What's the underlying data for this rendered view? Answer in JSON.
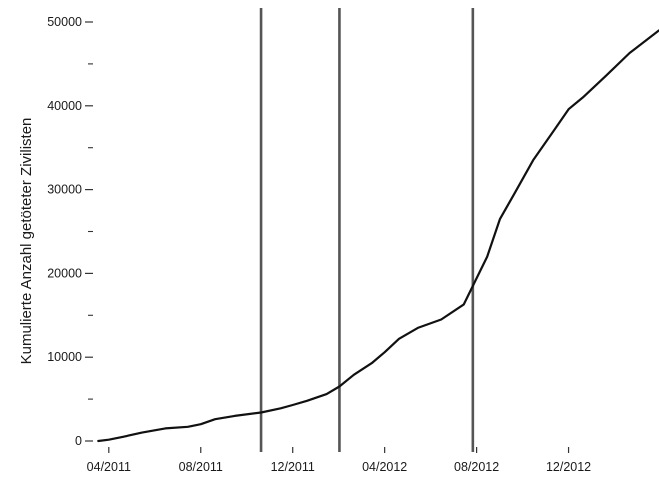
{
  "chart_data": {
    "type": "line",
    "ylabel": "Kumulierte Anzahl getöteter Zivilisten",
    "xlabel": "",
    "ylim": [
      0,
      50000
    ],
    "y_ticks": [
      0,
      10000,
      20000,
      30000,
      40000,
      50000
    ],
    "y_minor_ticks": [
      5000,
      15000,
      25000,
      35000,
      45000
    ],
    "x_ticks": [
      {
        "date": "2011-04-01",
        "label": "04/2011"
      },
      {
        "date": "2011-08-01",
        "label": "08/2011"
      },
      {
        "date": "2011-12-01",
        "label": "12/2011"
      },
      {
        "date": "2012-04-01",
        "label": "04/2012"
      },
      {
        "date": "2012-08-01",
        "label": "08/2012"
      },
      {
        "date": "2012-12-01",
        "label": "12/2012"
      }
    ],
    "xlim": [
      "2011-03-15",
      "2013-03-31"
    ],
    "grid": false,
    "legend": "none",
    "vertical_lines": [
      "2011-10-20",
      "2012-02-01",
      "2012-07-27"
    ],
    "series": [
      {
        "line_color": "#111111",
        "x": [
          "2011-03-18",
          "2011-04-01",
          "2011-04-20",
          "2011-05-15",
          "2011-06-15",
          "2011-07-15",
          "2011-08-01",
          "2011-08-20",
          "2011-09-15",
          "2011-10-20",
          "2011-11-15",
          "2011-12-01",
          "2011-12-20",
          "2012-01-15",
          "2012-02-01",
          "2012-02-20",
          "2012-03-15",
          "2012-04-01",
          "2012-04-20",
          "2012-05-15",
          "2012-06-15",
          "2012-07-15",
          "2012-07-27",
          "2012-08-15",
          "2012-09-01",
          "2012-09-20",
          "2012-10-15",
          "2012-11-15",
          "2012-12-01",
          "2012-12-20",
          "2013-01-20",
          "2013-02-20",
          "2013-03-31"
        ],
        "y": [
          0,
          150,
          500,
          1000,
          1500,
          1700,
          2000,
          2600,
          3000,
          3400,
          3900,
          4300,
          4800,
          5600,
          6500,
          7900,
          9300,
          10600,
          12200,
          13500,
          14500,
          16300,
          18500,
          22000,
          26500,
          29500,
          33500,
          37500,
          39600,
          41000,
          43600,
          46300,
          49000
        ]
      }
    ]
  }
}
